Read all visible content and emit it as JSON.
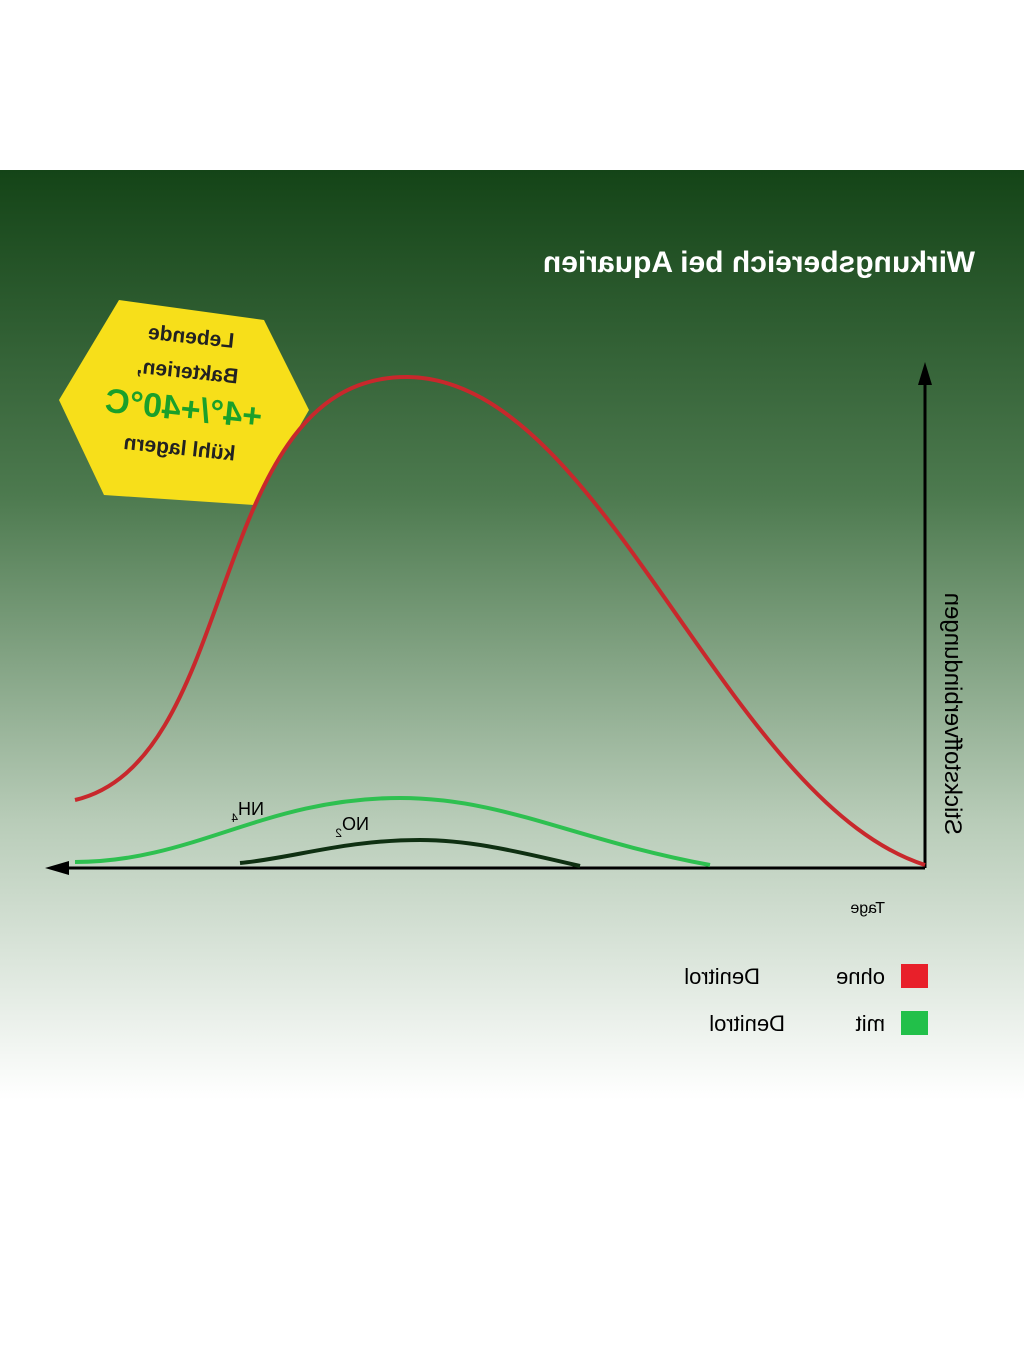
{
  "title": "Wirkungsbereich bei Aquarien",
  "badge": {
    "lines": [
      "Lebende",
      "Bakterien,",
      "+4°/+40°C",
      "kühl lagern"
    ]
  },
  "axes": {
    "y_label": "Stickstoffverbindungen",
    "x_label": "Tage"
  },
  "curve_labels": {
    "nh4": {
      "text": "NH",
      "sub": "4"
    },
    "no2": {
      "text": "NO",
      "sub": "2"
    }
  },
  "legend": [
    {
      "label": [
        "ohne",
        "Denitrol"
      ],
      "color": "#e8202a"
    },
    {
      "label": [
        "mit",
        "Denitrol"
      ],
      "color": "#22c04a"
    }
  ]
}
